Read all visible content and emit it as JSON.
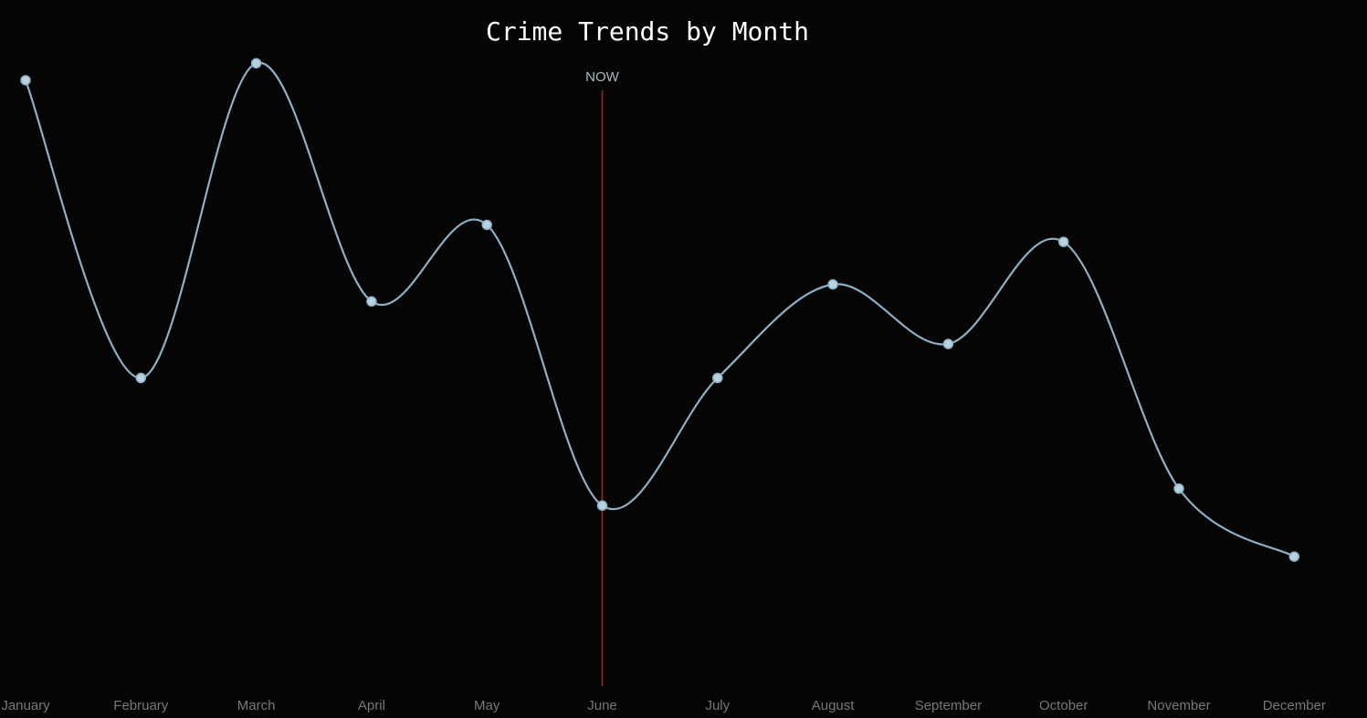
{
  "chart_data": {
    "type": "line",
    "title": "Crime Trends by Month",
    "xlabel": "",
    "ylabel": "",
    "grid": false,
    "categories": [
      "January",
      "February",
      "March",
      "April",
      "May",
      "June",
      "July",
      "August",
      "September",
      "October",
      "November",
      "December"
    ],
    "series": [
      {
        "values": [
          92,
          57,
          94,
          66,
          75,
          42,
          57,
          68,
          61,
          73,
          44,
          36
        ],
        "color": "#8fb0c4"
      }
    ],
    "ylim": [
      24,
      95
    ],
    "annotation": {
      "label": "NOW",
      "category": "June",
      "color": "#cc1111"
    },
    "colors": {
      "background": "#050505",
      "line": "#8fb0c4",
      "point_fill": "#b8d2e2",
      "now_line": "#cc1111"
    }
  }
}
